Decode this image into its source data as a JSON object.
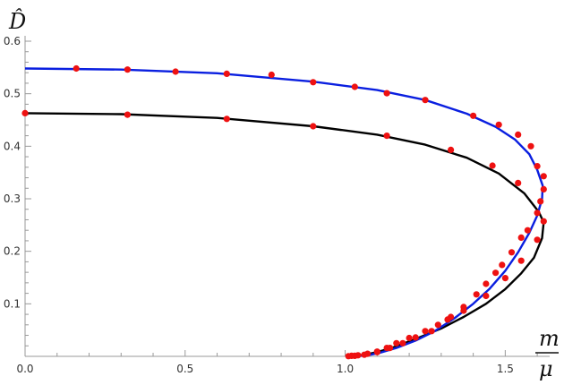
{
  "chart_data": {
    "type": "line",
    "title": "",
    "xlabel": {
      "numerator": "m",
      "denominator": "μ"
    },
    "ylabel": "D̂",
    "xlim": [
      0,
      1.65
    ],
    "ylim": [
      0,
      0.6
    ],
    "x_ticks": [
      0.0,
      0.5,
      1.0,
      1.5
    ],
    "x_tick_labels": [
      "0.0",
      "0.5",
      "1.0",
      "1.5"
    ],
    "y_ticks": [
      0.1,
      0.2,
      0.3,
      0.4,
      0.5,
      0.6
    ],
    "y_tick_labels": [
      "0.1",
      "0.2",
      "0.3",
      "0.4",
      "0.5",
      "0.6"
    ],
    "grid": false,
    "colors": {
      "black_curve": "#000000",
      "blue_curve": "#0a1fe0",
      "points": "#ee1111"
    },
    "series": [
      {
        "color": "black",
        "curve": [
          [
            0.0,
            0.463
          ],
          [
            0.3,
            0.461
          ],
          [
            0.6,
            0.454
          ],
          [
            0.9,
            0.438
          ],
          [
            1.1,
            0.422
          ],
          [
            1.25,
            0.403
          ],
          [
            1.38,
            0.378
          ],
          [
            1.48,
            0.348
          ],
          [
            1.56,
            0.31
          ],
          [
            1.605,
            0.275
          ],
          [
            1.62,
            0.255
          ],
          [
            1.615,
            0.225
          ],
          [
            1.59,
            0.188
          ],
          [
            1.55,
            0.158
          ],
          [
            1.5,
            0.128
          ],
          [
            1.44,
            0.1
          ],
          [
            1.37,
            0.075
          ],
          [
            1.3,
            0.053
          ],
          [
            1.22,
            0.033
          ],
          [
            1.15,
            0.017
          ],
          [
            1.1,
            0.008
          ],
          [
            1.06,
            0.003
          ],
          [
            1.03,
            0.001
          ]
        ],
        "points": [
          [
            0.0,
            0.463
          ],
          [
            0.32,
            0.46
          ],
          [
            0.63,
            0.452
          ],
          [
            0.9,
            0.438
          ],
          [
            1.13,
            0.42
          ],
          [
            1.33,
            0.393
          ],
          [
            1.46,
            0.363
          ],
          [
            1.54,
            0.33
          ],
          [
            1.62,
            0.257
          ],
          [
            1.6,
            0.222
          ],
          [
            1.55,
            0.182
          ],
          [
            1.5,
            0.149
          ],
          [
            1.44,
            0.115
          ],
          [
            1.37,
            0.087
          ],
          [
            1.33,
            0.075
          ],
          [
            1.29,
            0.06
          ],
          [
            1.25,
            0.048
          ],
          [
            1.2,
            0.035
          ],
          [
            1.16,
            0.025
          ],
          [
            1.13,
            0.016
          ],
          [
            1.1,
            0.009
          ],
          [
            1.07,
            0.005
          ],
          [
            1.04,
            0.002
          ],
          [
            1.02,
            0.001
          ]
        ]
      },
      {
        "color": "blue",
        "curve": [
          [
            0.0,
            0.548
          ],
          [
            0.3,
            0.546
          ],
          [
            0.6,
            0.539
          ],
          [
            0.9,
            0.523
          ],
          [
            1.1,
            0.507
          ],
          [
            1.25,
            0.488
          ],
          [
            1.38,
            0.462
          ],
          [
            1.47,
            0.437
          ],
          [
            1.53,
            0.413
          ],
          [
            1.575,
            0.385
          ],
          [
            1.6,
            0.355
          ],
          [
            1.617,
            0.325
          ],
          [
            1.615,
            0.3
          ],
          [
            1.6,
            0.268
          ],
          [
            1.575,
            0.235
          ],
          [
            1.54,
            0.198
          ],
          [
            1.5,
            0.163
          ],
          [
            1.45,
            0.128
          ],
          [
            1.4,
            0.1
          ],
          [
            1.34,
            0.072
          ],
          [
            1.28,
            0.048
          ],
          [
            1.22,
            0.03
          ],
          [
            1.16,
            0.016
          ],
          [
            1.11,
            0.007
          ],
          [
            1.07,
            0.002
          ],
          [
            1.04,
            0.0005
          ]
        ],
        "points": [
          [
            0.16,
            0.548
          ],
          [
            0.32,
            0.546
          ],
          [
            0.47,
            0.542
          ],
          [
            0.63,
            0.538
          ],
          [
            0.77,
            0.536
          ],
          [
            0.9,
            0.522
          ],
          [
            1.03,
            0.513
          ],
          [
            1.13,
            0.501
          ],
          [
            1.25,
            0.488
          ],
          [
            1.4,
            0.458
          ],
          [
            1.48,
            0.441
          ],
          [
            1.54,
            0.422
          ],
          [
            1.58,
            0.4
          ],
          [
            1.6,
            0.362
          ],
          [
            1.62,
            0.343
          ],
          [
            1.62,
            0.318
          ],
          [
            1.61,
            0.295
          ],
          [
            1.6,
            0.273
          ],
          [
            1.57,
            0.24
          ],
          [
            1.55,
            0.226
          ],
          [
            1.52,
            0.198
          ],
          [
            1.49,
            0.174
          ],
          [
            1.47,
            0.159
          ],
          [
            1.44,
            0.138
          ],
          [
            1.41,
            0.118
          ],
          [
            1.37,
            0.094
          ],
          [
            1.32,
            0.07
          ],
          [
            1.27,
            0.048
          ],
          [
            1.22,
            0.036
          ],
          [
            1.18,
            0.025
          ],
          [
            1.14,
            0.016
          ],
          [
            1.1,
            0.008
          ],
          [
            1.06,
            0.003
          ],
          [
            1.03,
            0.001
          ],
          [
            1.01,
            0.0003
          ]
        ]
      }
    ]
  }
}
